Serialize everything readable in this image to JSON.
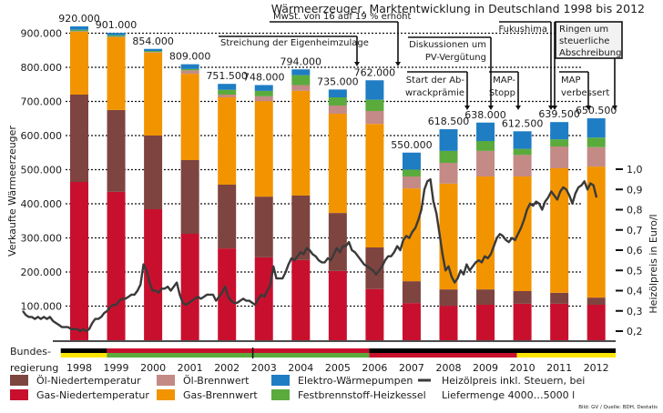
{
  "chart_data": {
    "type": "bar",
    "stacked": true,
    "title": "Wärmeerzeuger, Marktentwicklung in Deutschland 1998 bis 2012",
    "ylabel": "Verkaufte Wärmeerzeuger",
    "y2label": "Heizölpreis in Euro/l",
    "ylim": [
      0,
      950000
    ],
    "y2lim": [
      0.2,
      1.0
    ],
    "yticks": [
      "100.000",
      "200.000",
      "300.000",
      "400.000",
      "500.000",
      "600.000",
      "700.000",
      "800.000",
      "900.000"
    ],
    "ytick_values": [
      100000,
      200000,
      300000,
      400000,
      500000,
      600000,
      700000,
      800000,
      900000
    ],
    "y2ticks": [
      "0,2",
      "0,3",
      "0,4",
      "0,5",
      "0,6",
      "0,7",
      "0,8",
      "0,9",
      "1,0"
    ],
    "y2tick_values": [
      0.2,
      0.3,
      0.4,
      0.5,
      0.6,
      0.7,
      0.8,
      0.9,
      1.0
    ],
    "grid": true,
    "categories": [
      "1998",
      "1999",
      "2000",
      "2001",
      "2002",
      "2003",
      "2004",
      "2005",
      "2006",
      "2007",
      "2008",
      "2009",
      "2010",
      "2011",
      "2012"
    ],
    "totals": [
      920000,
      901000,
      854000,
      809000,
      751500,
      748000,
      794000,
      735000,
      762000,
      550000,
      618500,
      638000,
      612500,
      639500,
      650500
    ],
    "total_labels": [
      "920.000",
      "901.000",
      "854.000",
      "809.000",
      "751.500",
      "748.000",
      "794.000",
      "735.000",
      "762.000",
      "550.000",
      "618.500",
      "638.000",
      "612.500",
      "639.500",
      "650.500"
    ],
    "series": [
      {
        "name": "Gas-Niedertemperatur",
        "color": "#c8102e",
        "values": [
          464000,
          435000,
          384000,
          312000,
          269000,
          243000,
          235000,
          203000,
          150000,
          109000,
          101000,
          104000,
          107000,
          107000,
          104000
        ]
      },
      {
        "name": "Öl-Niedertemperatur",
        "color": "#7e4440",
        "values": [
          256000,
          240000,
          216000,
          216000,
          187000,
          178000,
          189000,
          170000,
          122000,
          64000,
          48000,
          45000,
          37000,
          32000,
          21000
        ]
      },
      {
        "name": "Gas-Brennwert",
        "color": "#f29400",
        "values": [
          184000,
          213000,
          243000,
          253000,
          256000,
          280000,
          307000,
          291000,
          362000,
          272000,
          310000,
          331000,
          336000,
          365000,
          384000
        ]
      },
      {
        "name": "Öl-Brennwert",
        "color": "#c48a85",
        "values": [
          2000,
          2000,
          2000,
          10000,
          8000,
          14000,
          17000,
          24000,
          38000,
          35000,
          61000,
          75000,
          63000,
          64000,
          57000
        ]
      },
      {
        "name": "Festbrennstoff-Heizkessel",
        "color": "#5aab3c",
        "values": [
          4000,
          4000,
          3000,
          4000,
          14000,
          16000,
          29000,
          24000,
          33000,
          20000,
          35000,
          29000,
          18000,
          21000,
          28000
        ]
      },
      {
        "name": "Elektro-Wärmepumpen",
        "color": "#1f7dc4",
        "values": [
          10000,
          7000,
          6000,
          14000,
          17500,
          17000,
          17000,
          23000,
          57000,
          50000,
          63500,
          54000,
          51500,
          50500,
          56500
        ]
      }
    ],
    "line": {
      "name": "Heizölpreis inkl. Steuern, bei Liefermenge 4000…5000 l",
      "color": "#3a3a3a",
      "axis": "right",
      "x_start_year": 1998.0,
      "x_end_year": 2013.0,
      "values": [
        0.3,
        0.28,
        0.27,
        0.27,
        0.26,
        0.27,
        0.26,
        0.27,
        0.26,
        0.27,
        0.25,
        0.24,
        0.23,
        0.22,
        0.22,
        0.22,
        0.21,
        0.21,
        0.21,
        0.2,
        0.21,
        0.2,
        0.21,
        0.24,
        0.26,
        0.26,
        0.27,
        0.29,
        0.3,
        0.32,
        0.33,
        0.33,
        0.35,
        0.36,
        0.36,
        0.37,
        0.38,
        0.38,
        0.4,
        0.43,
        0.53,
        0.5,
        0.44,
        0.4,
        0.4,
        0.39,
        0.41,
        0.41,
        0.42,
        0.4,
        0.42,
        0.44,
        0.38,
        0.34,
        0.33,
        0.34,
        0.35,
        0.36,
        0.37,
        0.36,
        0.37,
        0.38,
        0.38,
        0.38,
        0.35,
        0.37,
        0.39,
        0.42,
        0.37,
        0.35,
        0.34,
        0.34,
        0.35,
        0.36,
        0.35,
        0.35,
        0.34,
        0.33,
        0.36,
        0.38,
        0.37,
        0.4,
        0.43,
        0.52,
        0.46,
        0.46,
        0.46,
        0.49,
        0.53,
        0.56,
        0.55,
        0.57,
        0.59,
        0.58,
        0.61,
        0.6,
        0.58,
        0.57,
        0.55,
        0.54,
        0.54,
        0.56,
        0.55,
        0.58,
        0.61,
        0.59,
        0.62,
        0.62,
        0.64,
        0.6,
        0.59,
        0.57,
        0.55,
        0.53,
        0.52,
        0.51,
        0.5,
        0.48,
        0.5,
        0.52,
        0.55,
        0.57,
        0.57,
        0.59,
        0.62,
        0.6,
        0.65,
        0.67,
        0.66,
        0.69,
        0.71,
        0.75,
        0.8,
        0.9,
        0.94,
        0.95,
        0.84,
        0.78,
        0.68,
        0.58,
        0.5,
        0.52,
        0.47,
        0.44,
        0.46,
        0.5,
        0.48,
        0.53,
        0.5,
        0.52,
        0.54,
        0.55,
        0.54,
        0.57,
        0.56,
        0.58,
        0.62,
        0.66,
        0.68,
        0.67,
        0.65,
        0.64,
        0.66,
        0.65,
        0.68,
        0.71,
        0.75,
        0.8,
        0.83,
        0.82,
        0.84,
        0.83,
        0.8,
        0.84,
        0.86,
        0.89,
        0.87,
        0.85,
        0.89,
        0.91,
        0.9,
        0.87,
        0.83,
        0.88,
        0.91,
        0.92,
        0.94,
        0.9,
        0.93,
        0.92,
        0.86
      ]
    },
    "annotations": [
      {
        "text": "MwSt. von 16 auf 19 % erhöht",
        "target_year": "2006"
      },
      {
        "text": "Streichung der Eigenheimzulage",
        "target_year": "2005"
      },
      {
        "text": "Diskussionen um PV-Vergütung",
        "lines": [
          "Diskussionen um",
          "PV-Vergütung"
        ],
        "target_year": "2009"
      },
      {
        "text": "Start der Abwrackprämie",
        "lines": [
          "Start der Ab-",
          "wrackprämie"
        ],
        "target_year": "2008"
      },
      {
        "text": "MAP-Stopp",
        "lines": [
          "MAP-",
          "Stopp"
        ],
        "target_year": "2010"
      },
      {
        "text": "Fukushima",
        "target_year": "2011"
      },
      {
        "text": "Ringen um steuerliche Abschreibung",
        "lines": [
          "Ringen um",
          "steuerliche",
          "Abschreibung"
        ],
        "target_year": "2012"
      },
      {
        "text": "MAP verbessert",
        "lines": [
          "MAP",
          "verbessert"
        ],
        "target_year": "2012"
      }
    ],
    "government": {
      "label_lines": [
        "Bundes-",
        "regierung"
      ],
      "periods": [
        {
          "from": 1997.5,
          "to": 1998.75,
          "colors": [
            "#000000",
            "#ffe600"
          ]
        },
        {
          "from": 1998.75,
          "to": 2002.7,
          "colors": [
            "#c8102e",
            "#5aab3c"
          ]
        },
        {
          "from": 2002.7,
          "to": 2005.85,
          "colors": [
            "#c8102e",
            "#5aab3c"
          ]
        },
        {
          "from": 2005.85,
          "to": 2009.85,
          "colors": [
            "#000000",
            "#c8102e"
          ]
        },
        {
          "from": 2009.85,
          "to": 2012.6,
          "colors": [
            "#000000",
            "#ffe600"
          ]
        }
      ]
    },
    "legend": {
      "placement": "bottom",
      "items": [
        {
          "label": "Öl-Niedertemperatur",
          "color": "#7e4440",
          "kind": "box"
        },
        {
          "label": "Gas-Niedertemperatur",
          "color": "#c8102e",
          "kind": "box"
        },
        {
          "label": "Öl-Brennwert",
          "color": "#c48a85",
          "kind": "box"
        },
        {
          "label": "Gas-Brennwert",
          "color": "#f29400",
          "kind": "box"
        },
        {
          "label": "Elektro-Wärmepumpen",
          "color": "#1f7dc4",
          "kind": "box"
        },
        {
          "label": "Festbrennstoff-Heizkessel",
          "color": "#5aab3c",
          "kind": "box"
        },
        {
          "label": "Heizölpreis inkl. Steuern, bei",
          "label2": "Liefermenge 4000…5000 l",
          "color": "#3a3a3a",
          "kind": "line"
        }
      ]
    },
    "source": "Bild: GV / Quelle: BDH, Destatis"
  }
}
